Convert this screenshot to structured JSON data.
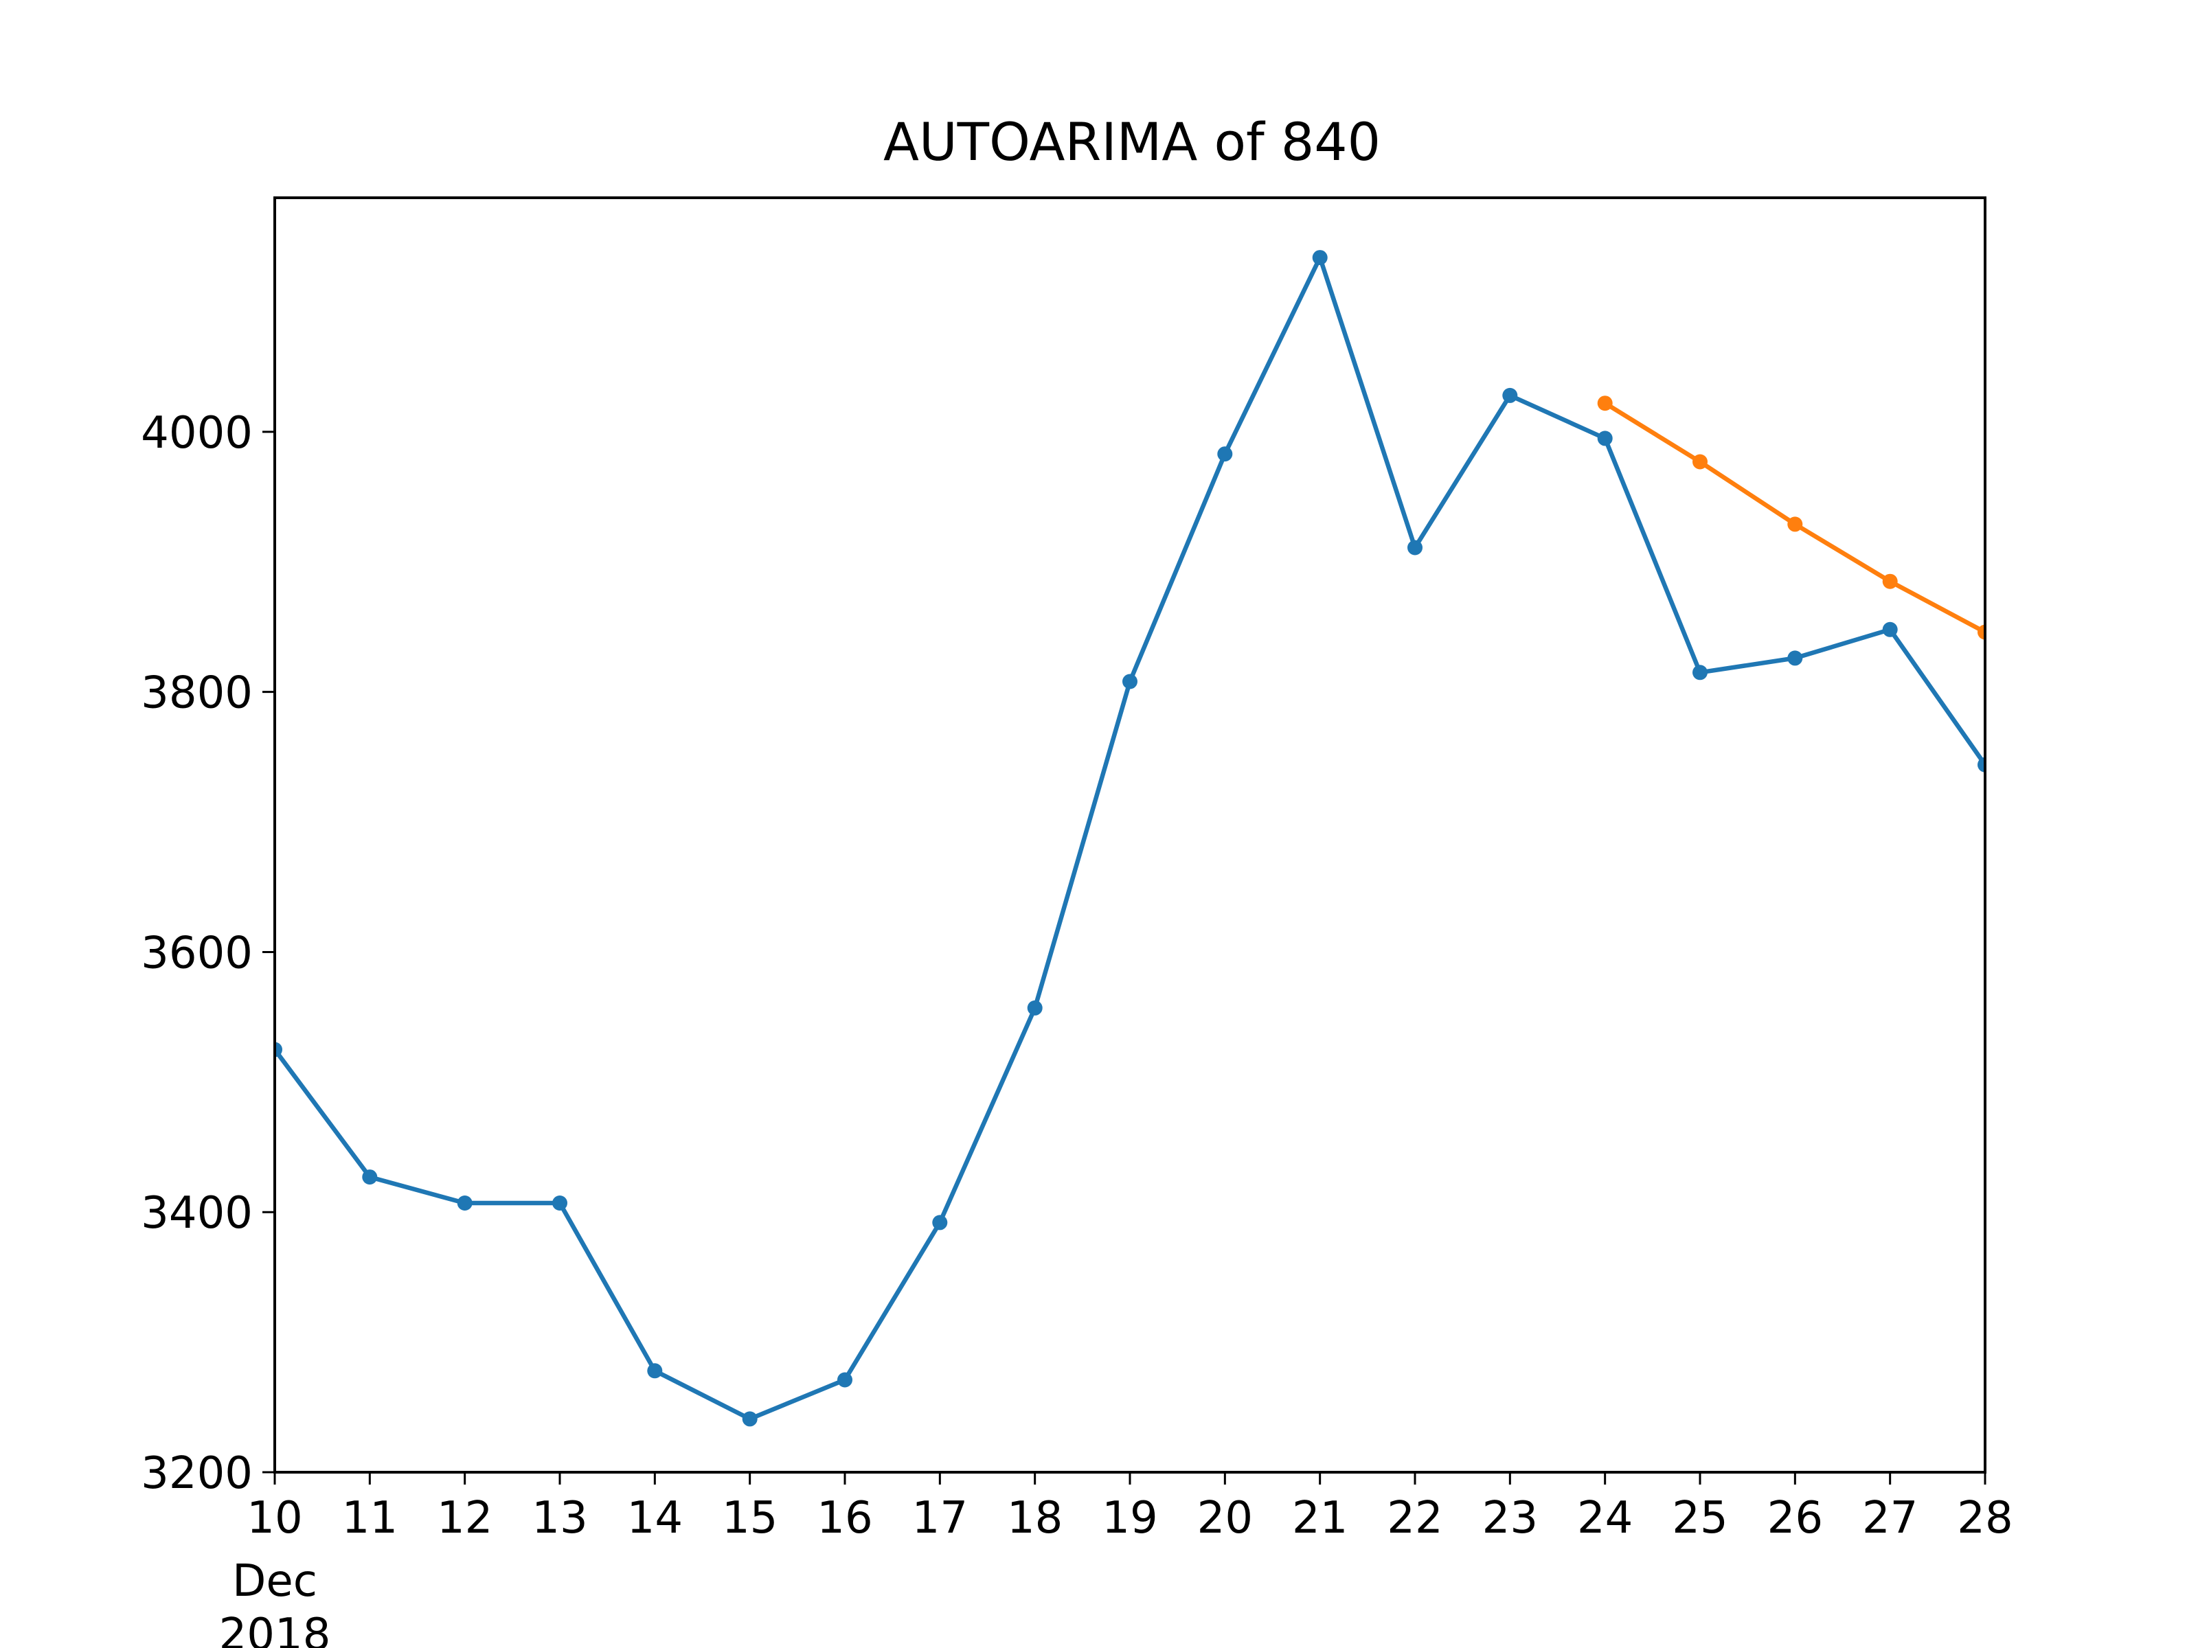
{
  "chart_data": {
    "type": "line",
    "title": "AUTOARIMA of 840",
    "xlabel": "",
    "ylabel": "",
    "x_ticks": [
      "10",
      "11",
      "12",
      "13",
      "14",
      "15",
      "16",
      "17",
      "18",
      "19",
      "20",
      "21",
      "22",
      "23",
      "24",
      "25",
      "26",
      "27",
      "28"
    ],
    "x_tick_sublabels": [
      "Dec",
      "2018"
    ],
    "y_ticks": [
      3200,
      3400,
      3600,
      3800,
      4000
    ],
    "xlim": [
      "2018-12-10",
      "2018-12-28"
    ],
    "ylim": [
      3200,
      4180
    ],
    "grid": false,
    "series": [
      {
        "color": "#1f77b4",
        "x": [
          "2018-12-10",
          "2018-12-11",
          "2018-12-12",
          "2018-12-13",
          "2018-12-14",
          "2018-12-15",
          "2018-12-16",
          "2018-12-17",
          "2018-12-18",
          "2018-12-19",
          "2018-12-20",
          "2018-12-21",
          "2018-12-22",
          "2018-12-23",
          "2018-12-24",
          "2018-12-25",
          "2018-12-26",
          "2018-12-27",
          "2018-12-28"
        ],
        "values": [
          3525,
          3427,
          3407,
          3407,
          3278,
          3241,
          3271,
          3392,
          3557,
          3808,
          3983,
          4134,
          3911,
          4028,
          3995,
          3815,
          3826,
          3848,
          3744
        ]
      },
      {
        "color": "#ff7f0e",
        "x": [
          "2018-12-24",
          "2018-12-25",
          "2018-12-26",
          "2018-12-27",
          "2018-12-28"
        ],
        "values": [
          4022,
          3977,
          3929,
          3885,
          3846
        ]
      }
    ]
  }
}
